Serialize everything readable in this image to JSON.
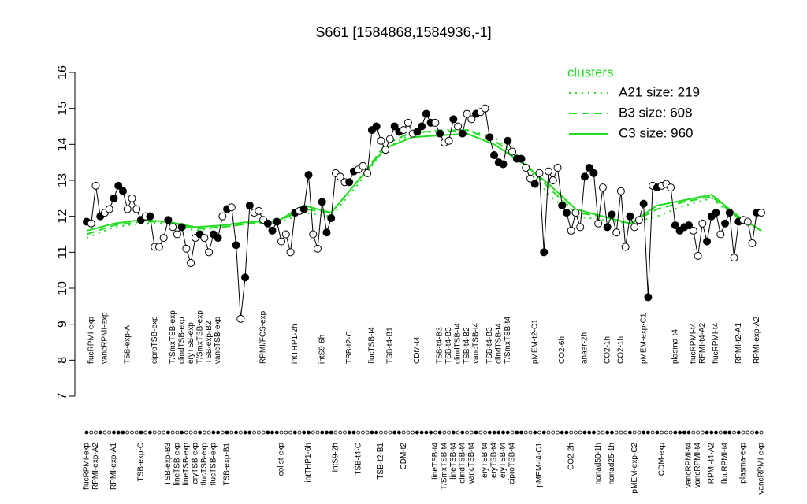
{
  "chart_data": {
    "type": "line",
    "title": "S661 [1584868,1584936,-1]",
    "ylim": [
      7,
      16
    ],
    "yticks": [
      7,
      8,
      9,
      10,
      11,
      12,
      13,
      14,
      15,
      16
    ],
    "categories": [
      "flucRPMI-exp",
      "flucRPMI-exp",
      "RPMI-exp-A2",
      null,
      "vancRPMI-exp",
      null,
      "RPMI-exp-A1",
      null,
      null,
      "TSB-exp-A",
      null,
      null,
      "TSB-exp-C",
      null,
      null,
      "ciproTSB-exp",
      null,
      null,
      "TSB-exp-B3",
      "T/SmxTSB-exp",
      "lineTSB-exp",
      "clindTSB-exp",
      "lineTSB-exp",
      "eryTSB-exp",
      "eryTSB-exp",
      "T/SmxTSB-exp",
      "flucTSB-exp",
      "TSB-exp-B2",
      "flucTSB-exp",
      "vancTSB-exp",
      null,
      "TSB-exp-B1",
      null,
      null,
      null,
      null,
      null,
      null,
      null,
      "RPMI/FCS-exp",
      null,
      null,
      null,
      "colist-exp",
      null,
      null,
      "intTHP1-2h",
      null,
      null,
      "intTHP1-6h",
      null,
      null,
      "intS9-6h",
      null,
      null,
      "intS9-2h",
      null,
      null,
      "TSB-t2-C",
      null,
      "TSB-t4-C",
      null,
      null,
      "flucTSB-t4",
      null,
      "TSB-t2-B1",
      null,
      "TSB-t4-B1",
      null,
      null,
      "CDM-t2",
      null,
      null,
      "CDM-t4",
      null,
      null,
      null,
      "lineTSB-t4",
      "TSB-t4-B3",
      "T/SmxTSB-t4",
      "TSB-t4-B3",
      "lineTSB-t4",
      "clindTSB-t4",
      "clindTSB-t4",
      "TSB-t4-B2",
      "vancTSB-t4",
      "vancTSB-t4",
      null,
      "eryTSB-t4",
      "TSB-t4-B3",
      "eryTSB-t4",
      "clindTSB-t4",
      "eryTSB-t4",
      "T/SmxTSB-t4",
      "ciproTSB-t4",
      null,
      null,
      null,
      null,
      "pMEM-t2-C1",
      "pMEM-t4-C1",
      null,
      null,
      null,
      null,
      "CO2-6h",
      null,
      "CO2-2h",
      null,
      null,
      "anaer-2h",
      null,
      null,
      "nonad50-1h",
      null,
      "CO2-1h",
      "nonad25-1h",
      null,
      "CO2-1h",
      null,
      null,
      "pMEM-exp-C2",
      null,
      "pMEM-exp-C1",
      null,
      null,
      null,
      "CDM-exp",
      null,
      null,
      "plasma-t4",
      null,
      null,
      "vancRPMI-t4",
      "flucRPMI-t4",
      "vancRPMI-t4",
      "RPMI-t4-A2",
      null,
      "RPMI-t4-A2",
      "flucRPMI-t4",
      null,
      "flucRPMI-t4",
      null,
      null,
      "RPMI-t2-A1",
      "plasma-exp",
      null,
      null,
      "RPMI-exp-A2",
      "vancRPMI-exp"
    ],
    "values": [
      11.85,
      11.8,
      12.85,
      12.0,
      12.1,
      12.2,
      12.5,
      12.85,
      12.7,
      12.2,
      12.5,
      12.2,
      11.9,
      12.0,
      12.0,
      11.15,
      11.15,
      11.4,
      11.9,
      11.7,
      11.5,
      11.7,
      11.1,
      10.7,
      11.4,
      11.5,
      11.4,
      11.0,
      11.5,
      11.4,
      12.0,
      12.2,
      12.25,
      11.2,
      9.15,
      10.3,
      12.3,
      12.1,
      12.15,
      11.9,
      11.8,
      11.6,
      11.85,
      11.3,
      11.5,
      11.0,
      12.1,
      12.15,
      12.2,
      13.15,
      11.5,
      11.1,
      12.4,
      11.55,
      11.95,
      13.2,
      13.1,
      12.95,
      12.95,
      13.25,
      13.3,
      13.4,
      13.2,
      14.4,
      14.5,
      14.1,
      13.85,
      14.15,
      14.5,
      14.35,
      14.4,
      14.6,
      14.3,
      14.35,
      14.5,
      14.85,
      14.6,
      14.6,
      14.3,
      14.05,
      14.1,
      14.7,
      14.5,
      14.3,
      14.85,
      14.7,
      14.85,
      14.9,
      15.0,
      14.2,
      13.7,
      13.5,
      13.45,
      14.1,
      13.8,
      13.6,
      13.6,
      13.35,
      13.05,
      12.9,
      13.2,
      11.0,
      13.25,
      13.0,
      13.35,
      12.3,
      12.1,
      11.6,
      12.1,
      11.7,
      13.1,
      13.35,
      13.2,
      11.8,
      12.8,
      11.7,
      12.05,
      11.55,
      12.7,
      11.15,
      12.0,
      11.7,
      11.9,
      12.35,
      9.75,
      12.85,
      12.8,
      12.85,
      12.9,
      12.8,
      11.75,
      11.6,
      11.7,
      11.75,
      11.6,
      10.9,
      11.8,
      11.3,
      12.0,
      12.1,
      11.5,
      11.8,
      12.1,
      10.85,
      11.85,
      11.9,
      11.85,
      11.25,
      12.1,
      12.1
    ],
    "filled": [
      true,
      false,
      false,
      true,
      false,
      false,
      true,
      true,
      true,
      false,
      false,
      false,
      true,
      false,
      true,
      false,
      false,
      false,
      true,
      false,
      false,
      true,
      false,
      false,
      false,
      true,
      false,
      false,
      true,
      true,
      false,
      true,
      false,
      true,
      false,
      true,
      true,
      false,
      false,
      false,
      true,
      true,
      true,
      false,
      false,
      false,
      true,
      false,
      true,
      true,
      false,
      false,
      true,
      true,
      true,
      false,
      false,
      false,
      true,
      true,
      false,
      false,
      false,
      true,
      true,
      false,
      false,
      false,
      true,
      true,
      false,
      false,
      false,
      true,
      true,
      true,
      true,
      false,
      true,
      false,
      false,
      true,
      false,
      true,
      false,
      false,
      true,
      false,
      false,
      true,
      true,
      true,
      true,
      true,
      false,
      true,
      true,
      false,
      false,
      true,
      false,
      true,
      false,
      false,
      false,
      true,
      true,
      false,
      false,
      false,
      true,
      true,
      true,
      false,
      false,
      true,
      true,
      false,
      false,
      false,
      true,
      false,
      false,
      true,
      true,
      false,
      true,
      false,
      false,
      false,
      true,
      true,
      true,
      true,
      false,
      false,
      false,
      true,
      true,
      true,
      false,
      true,
      true,
      false,
      true,
      false,
      false,
      false,
      true,
      false
    ],
    "color": "#000000",
    "legend_title": "clusters",
    "clusters": [
      {
        "name": "A21 size: 219",
        "color": "#22dd22",
        "style": "dotted",
        "x": [
          0,
          6,
          12,
          18,
          24,
          30,
          36,
          42,
          48,
          54,
          60,
          66,
          72,
          78,
          84,
          90,
          96,
          102,
          108,
          114,
          120,
          126,
          132,
          138,
          144,
          149
        ],
        "values": [
          11.4,
          11.7,
          11.8,
          11.8,
          11.6,
          11.7,
          11.8,
          11.8,
          12.1,
          12.0,
          12.9,
          13.9,
          14.3,
          14.4,
          14.4,
          14.2,
          13.6,
          12.6,
          12.0,
          11.9,
          11.8,
          12.0,
          12.3,
          12.5,
          11.9,
          11.6
        ]
      },
      {
        "name": "B3 size: 608",
        "color": "#22dd22",
        "style": "dashed",
        "x": [
          0,
          6,
          12,
          18,
          24,
          30,
          36,
          42,
          48,
          54,
          60,
          66,
          72,
          78,
          84,
          90,
          96,
          102,
          108,
          114,
          120,
          126,
          132,
          138,
          144,
          149
        ],
        "values": [
          11.5,
          11.75,
          11.85,
          11.85,
          11.65,
          11.7,
          11.8,
          11.85,
          12.2,
          12.1,
          13.0,
          14.0,
          14.35,
          14.35,
          14.4,
          14.1,
          13.6,
          12.8,
          12.1,
          12.0,
          11.8,
          12.2,
          12.4,
          12.55,
          11.95,
          11.6
        ]
      },
      {
        "name": "C3 size: 960",
        "color": "#22dd22",
        "style": "solid",
        "x": [
          0,
          6,
          12,
          18,
          24,
          30,
          36,
          42,
          48,
          54,
          60,
          66,
          72,
          78,
          84,
          90,
          96,
          102,
          108,
          114,
          120,
          126,
          132,
          138,
          144,
          149
        ],
        "values": [
          11.6,
          11.8,
          11.9,
          11.85,
          11.7,
          11.75,
          11.85,
          11.85,
          12.3,
          12.1,
          13.0,
          13.9,
          14.2,
          14.25,
          14.3,
          14.0,
          13.5,
          12.9,
          12.2,
          12.0,
          11.8,
          12.3,
          12.45,
          12.6,
          12.0,
          11.6
        ]
      }
    ]
  }
}
